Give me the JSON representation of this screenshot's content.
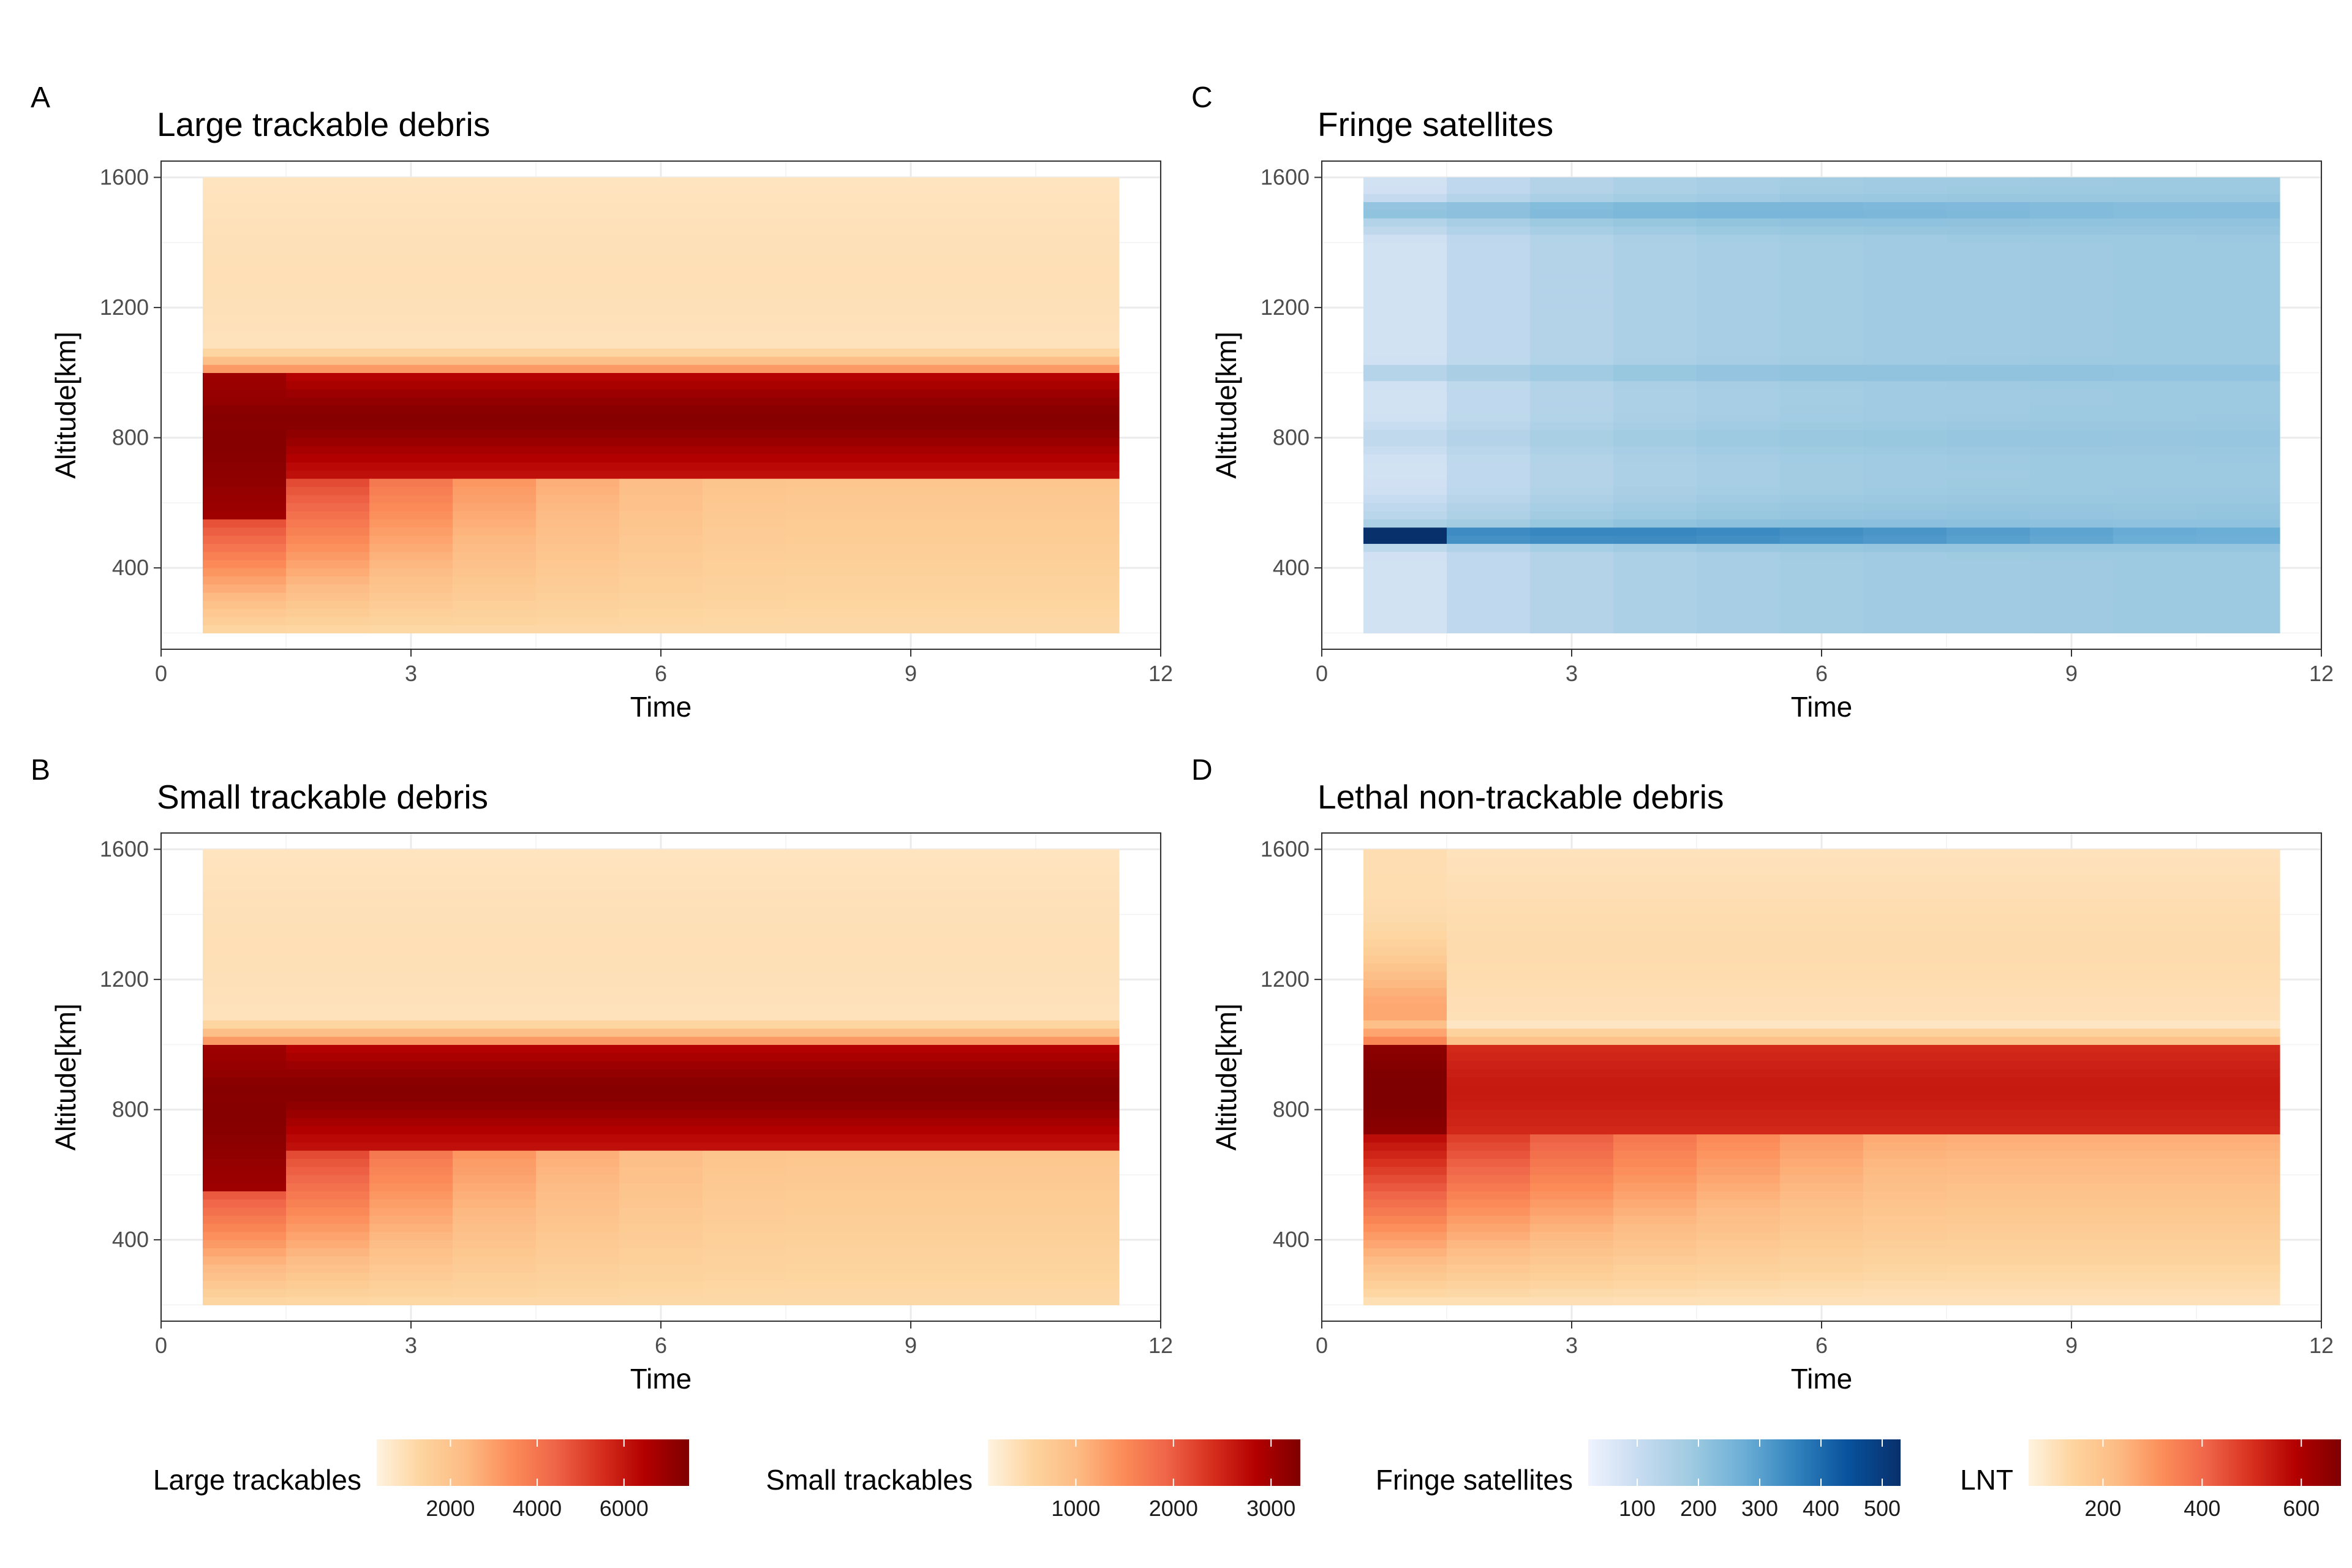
{
  "chart_data": [
    {
      "id": "A",
      "type": "heatmap",
      "panel_label": "A",
      "title": "Large trackable debris",
      "xlabel": "Time",
      "ylabel": "Altitude[km]",
      "x_range": [
        0,
        12
      ],
      "y_range": [
        150,
        1650
      ],
      "x_ticks": [
        0,
        3,
        6,
        9,
        12
      ],
      "y_ticks": [
        400,
        800,
        1200,
        1600
      ],
      "x_values": [
        1,
        2,
        3,
        4,
        5,
        6,
        7,
        8,
        9,
        10,
        11
      ],
      "y_range_cells": [
        200,
        1600
      ],
      "colorscale": "orange-red",
      "value_range": [
        300,
        7500
      ],
      "profile_note": "peak band 700-1000 km; low-altitude values decay after time 1",
      "legend": {
        "title": "Large trackables",
        "ticks": [
          2000,
          4000,
          6000
        ]
      }
    },
    {
      "id": "B",
      "type": "heatmap",
      "panel_label": "B",
      "title": "Small trackable debris",
      "xlabel": "Time",
      "ylabel": "Altitude[km]",
      "x_range": [
        0,
        12
      ],
      "y_range": [
        150,
        1650
      ],
      "x_ticks": [
        0,
        3,
        6,
        9,
        12
      ],
      "y_ticks": [
        400,
        800,
        1200,
        1600
      ],
      "x_values": [
        1,
        2,
        3,
        4,
        5,
        6,
        7,
        8,
        9,
        10,
        11
      ],
      "y_range_cells": [
        200,
        1600
      ],
      "colorscale": "orange-red",
      "value_range": [
        100,
        3300
      ],
      "profile_note": "peak band 700-1000 km; low-altitude values decay after time 1",
      "legend": {
        "title": "Small trackables",
        "ticks": [
          1000,
          2000,
          3000
        ]
      }
    },
    {
      "id": "C",
      "type": "heatmap",
      "panel_label": "C",
      "title": "Fringe satellites",
      "xlabel": "Time",
      "ylabel": "Altitude[km]",
      "x_range": [
        0,
        12
      ],
      "y_range": [
        150,
        1650
      ],
      "x_ticks": [
        0,
        3,
        6,
        9,
        12
      ],
      "y_ticks": [
        400,
        800,
        1200,
        1600
      ],
      "x_values": [
        1,
        2,
        3,
        4,
        5,
        6,
        7,
        8,
        9,
        10,
        11
      ],
      "y_range_cells": [
        200,
        1600
      ],
      "colorscale": "blues",
      "value_range": [
        20,
        530
      ],
      "profile_note": "strong band at ~500 km, weaker bands near 1000 km and 1500 km; values converge over time",
      "legend": {
        "title": "Fringe satellites",
        "ticks": [
          100,
          200,
          300,
          400,
          500
        ]
      }
    },
    {
      "id": "D",
      "type": "heatmap",
      "panel_label": "D",
      "title": "Lethal non-trackable debris",
      "xlabel": "Time",
      "ylabel": "Altitude[km]",
      "x_range": [
        0,
        12
      ],
      "y_range": [
        150,
        1650
      ],
      "x_ticks": [
        0,
        3,
        6,
        9,
        12
      ],
      "y_ticks": [
        400,
        800,
        1200,
        1600
      ],
      "x_values": [
        1,
        2,
        3,
        4,
        5,
        6,
        7,
        8,
        9,
        10,
        11
      ],
      "y_range_cells": [
        200,
        1600
      ],
      "colorscale": "orange-red",
      "value_range": [
        50,
        680
      ],
      "profile_note": "peak band 750-950 km, strongest at time 1",
      "legend": {
        "title": "LNT",
        "ticks": [
          200,
          400,
          600
        ]
      }
    }
  ],
  "colors": {
    "orange_red": [
      "#fff3e0",
      "#fdd49e",
      "#fdbb84",
      "#fc8d59",
      "#ef6548",
      "#d7301f",
      "#b30000",
      "#7f0000"
    ],
    "blues": [
      "#eff3ff",
      "#c6dbef",
      "#9ecae1",
      "#6baed6",
      "#3182bd",
      "#08519c",
      "#08306b"
    ],
    "grid_major": "#ebebeb",
    "grid_minor": "#f5f5f5",
    "panel_border": "#333333"
  }
}
